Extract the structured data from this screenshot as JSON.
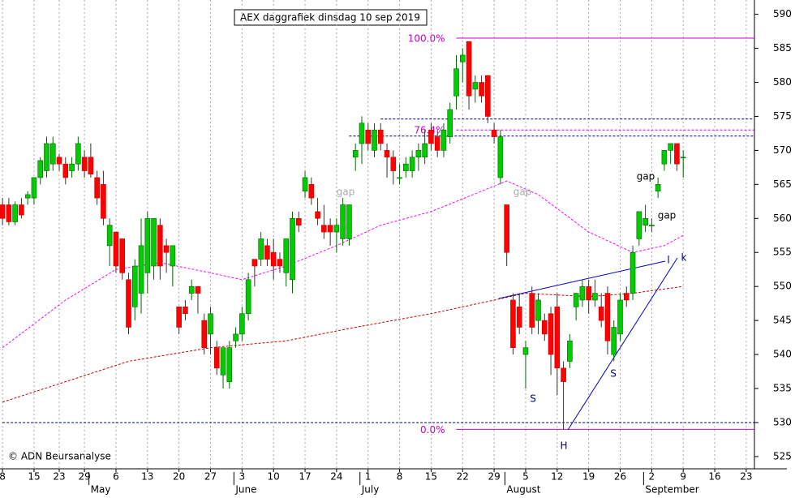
{
  "chart_data": {
    "type": "candlestick",
    "title": "AEX daggrafiek dinsdag 10 sep 2019",
    "source": "© ADN Beursanalyse",
    "up_color": "#00cc00",
    "down_color": "#ff0000",
    "open": [
      562,
      562,
      559.5,
      562,
      563,
      563,
      566,
      567,
      568,
      569,
      568,
      567,
      568,
      569,
      569,
      566,
      565,
      556,
      558,
      557,
      551,
      547,
      549,
      552,
      553,
      559,
      556,
      553,
      547,
      547,
      549,
      550,
      545,
      543,
      541,
      537,
      536,
      542,
      543,
      546,
      554,
      554,
      556,
      555,
      554,
      552,
      551,
      560,
      564,
      565,
      561,
      559,
      559,
      558,
      557,
      557,
      569,
      571,
      573,
      570,
      573,
      570,
      569,
      566,
      567,
      567,
      569,
      569,
      573,
      572,
      570,
      572,
      578,
      583,
      586,
      579,
      580,
      581,
      573,
      566,
      562,
      548,
      547,
      540,
      549,
      545,
      545,
      546,
      547,
      538,
      539,
      547,
      548,
      550,
      548,
      547,
      549,
      540,
      543,
      549,
      549,
      557,
      559,
      559,
      564,
      568,
      570,
      571,
      569
    ],
    "high": [
      563,
      563,
      562.5,
      563,
      564,
      566,
      569,
      572,
      572,
      569.5,
      569,
      569,
      572,
      570,
      571,
      567,
      567,
      560,
      558,
      557,
      552,
      554,
      560,
      561,
      560,
      560,
      557,
      556,
      547,
      548,
      551,
      550,
      546,
      547,
      542,
      541,
      542,
      544,
      547,
      552,
      554,
      558,
      557,
      557,
      555,
      557,
      561,
      561,
      567,
      566,
      563,
      562,
      560,
      560,
      563,
      562,
      571,
      575,
      574,
      574,
      574,
      571,
      570,
      568,
      569,
      570,
      571,
      573,
      574,
      573,
      574,
      577,
      584,
      585,
      586,
      581,
      581,
      581,
      574,
      573,
      562,
      549,
      549,
      542,
      550,
      549,
      546,
      547,
      549,
      539,
      543,
      549,
      551,
      551,
      551,
      549,
      550,
      545,
      549,
      550,
      556,
      561,
      562,
      560,
      566,
      570,
      571,
      571,
      570
    ],
    "low": [
      559,
      559,
      559,
      560,
      562,
      562,
      565,
      566,
      567,
      567,
      565,
      566,
      567,
      566,
      566,
      562,
      559,
      553,
      552,
      551,
      543,
      545,
      546,
      549,
      551,
      551,
      552,
      550,
      543,
      545,
      548,
      546,
      540,
      540,
      537,
      535,
      535,
      541,
      542,
      545,
      550,
      553,
      553,
      551,
      552,
      550,
      549,
      558,
      563,
      562,
      559,
      557,
      556,
      555,
      556,
      556,
      567,
      568,
      570,
      569,
      570,
      566,
      565,
      565,
      566,
      566,
      567,
      568,
      570,
      569,
      569,
      571,
      576,
      580,
      576,
      577,
      577,
      574,
      571,
      565,
      553,
      540,
      543,
      535,
      543,
      543,
      542,
      537,
      534,
      529,
      538,
      545,
      547,
      546,
      547,
      544,
      540,
      539,
      542,
      547,
      548,
      556,
      558,
      558,
      563,
      567,
      568,
      567,
      566
    ],
    "close": [
      560,
      559.5,
      562,
      560.5,
      563.5,
      566,
      568.5,
      571,
      571,
      568,
      566,
      568,
      571,
      567,
      566.5,
      563,
      560,
      559,
      553,
      552,
      544,
      553,
      556,
      560,
      560,
      553,
      555,
      556,
      544,
      546,
      550,
      549,
      541,
      546,
      538,
      541,
      541,
      543,
      546,
      551,
      553,
      557,
      554,
      553,
      553,
      557,
      560,
      559,
      566,
      563,
      560,
      558,
      558,
      559,
      562,
      562,
      570,
      574,
      571,
      573,
      571,
      569,
      567,
      566,
      568,
      569,
      570,
      571,
      571,
      570,
      573,
      576,
      582,
      584,
      578,
      580,
      578,
      575,
      572,
      572,
      555,
      541,
      544,
      541,
      544,
      548,
      543,
      540,
      538,
      536,
      542,
      549,
      550,
      548,
      549,
      545,
      542,
      544,
      548,
      548,
      555,
      561,
      560,
      559,
      565,
      570,
      571,
      568,
      569
    ],
    "xlim": [
      -0.4,
      119.3
    ],
    "ylim": [
      523.2,
      592.1
    ],
    "yticks": [
      525,
      530,
      535,
      540,
      545,
      550,
      555,
      560,
      565,
      570,
      575,
      580,
      585,
      590
    ],
    "xticks": [
      {
        "value": 0,
        "label": "8"
      },
      {
        "value": 5,
        "label": "15"
      },
      {
        "value": 9,
        "label": "23"
      },
      {
        "value": 13,
        "label": "29"
      },
      {
        "value": 18,
        "label": "6"
      },
      {
        "value": 23,
        "label": "13"
      },
      {
        "value": 28,
        "label": "20"
      },
      {
        "value": 33,
        "label": "27"
      },
      {
        "value": 38,
        "label": "3"
      },
      {
        "value": 43,
        "label": "10"
      },
      {
        "value": 48,
        "label": "17"
      },
      {
        "value": 53,
        "label": "24"
      },
      {
        "value": 58,
        "label": "1"
      },
      {
        "value": 63,
        "label": "8"
      },
      {
        "value": 68,
        "label": "15"
      },
      {
        "value": 73,
        "label": "22"
      },
      {
        "value": 78,
        "label": "29"
      },
      {
        "value": 83,
        "label": "5"
      },
      {
        "value": 88,
        "label": "12"
      },
      {
        "value": 93,
        "label": "19"
      },
      {
        "value": 98,
        "label": "26"
      },
      {
        "value": 103,
        "label": "2"
      },
      {
        "value": 108,
        "label": "9"
      },
      {
        "value": 113,
        "label": "16"
      },
      {
        "value": 118,
        "label": "23"
      }
    ],
    "month_ticks": [
      {
        "value": 15,
        "label": "May"
      },
      {
        "value": 38,
        "label": "June"
      },
      {
        "value": 58,
        "label": "July"
      },
      {
        "value": 81,
        "label": "August"
      },
      {
        "value": 103,
        "label": "September"
      }
    ],
    "grid": true,
    "moving_averages": [
      {
        "color": "#ff00ff",
        "x": [
          0,
          10,
          18,
          25,
          33,
          38,
          45,
          53,
          60,
          68,
          76,
          80,
          85,
          93,
          100,
          105,
          108
        ],
        "values": [
          541,
          548,
          552.5,
          553.5,
          552,
          551,
          553,
          556,
          559,
          561,
          564,
          565.5,
          563.5,
          558,
          555,
          556,
          557.5
        ]
      },
      {
        "color": "#cc0000",
        "x": [
          0,
          10,
          20,
          33,
          45,
          56,
          68,
          78,
          83,
          93,
          100,
          108
        ],
        "values": [
          533,
          536,
          539,
          541,
          542,
          544,
          546,
          548,
          549,
          548.5,
          549,
          550
        ]
      }
    ],
    "fib_levels": [
      {
        "value": 586.5,
        "label": "100.0%"
      },
      {
        "value": 573,
        "label": "76.4%"
      },
      {
        "value": 529,
        "label": "0.0%"
      }
    ],
    "fib_color": "#cc00cc",
    "guides": [
      574.6,
      572.1,
      530
    ],
    "guide_color": "#000080",
    "annotations": [
      "gap",
      "gap",
      "gap",
      "gap",
      "S",
      "H",
      "S",
      "l",
      "k"
    ]
  }
}
